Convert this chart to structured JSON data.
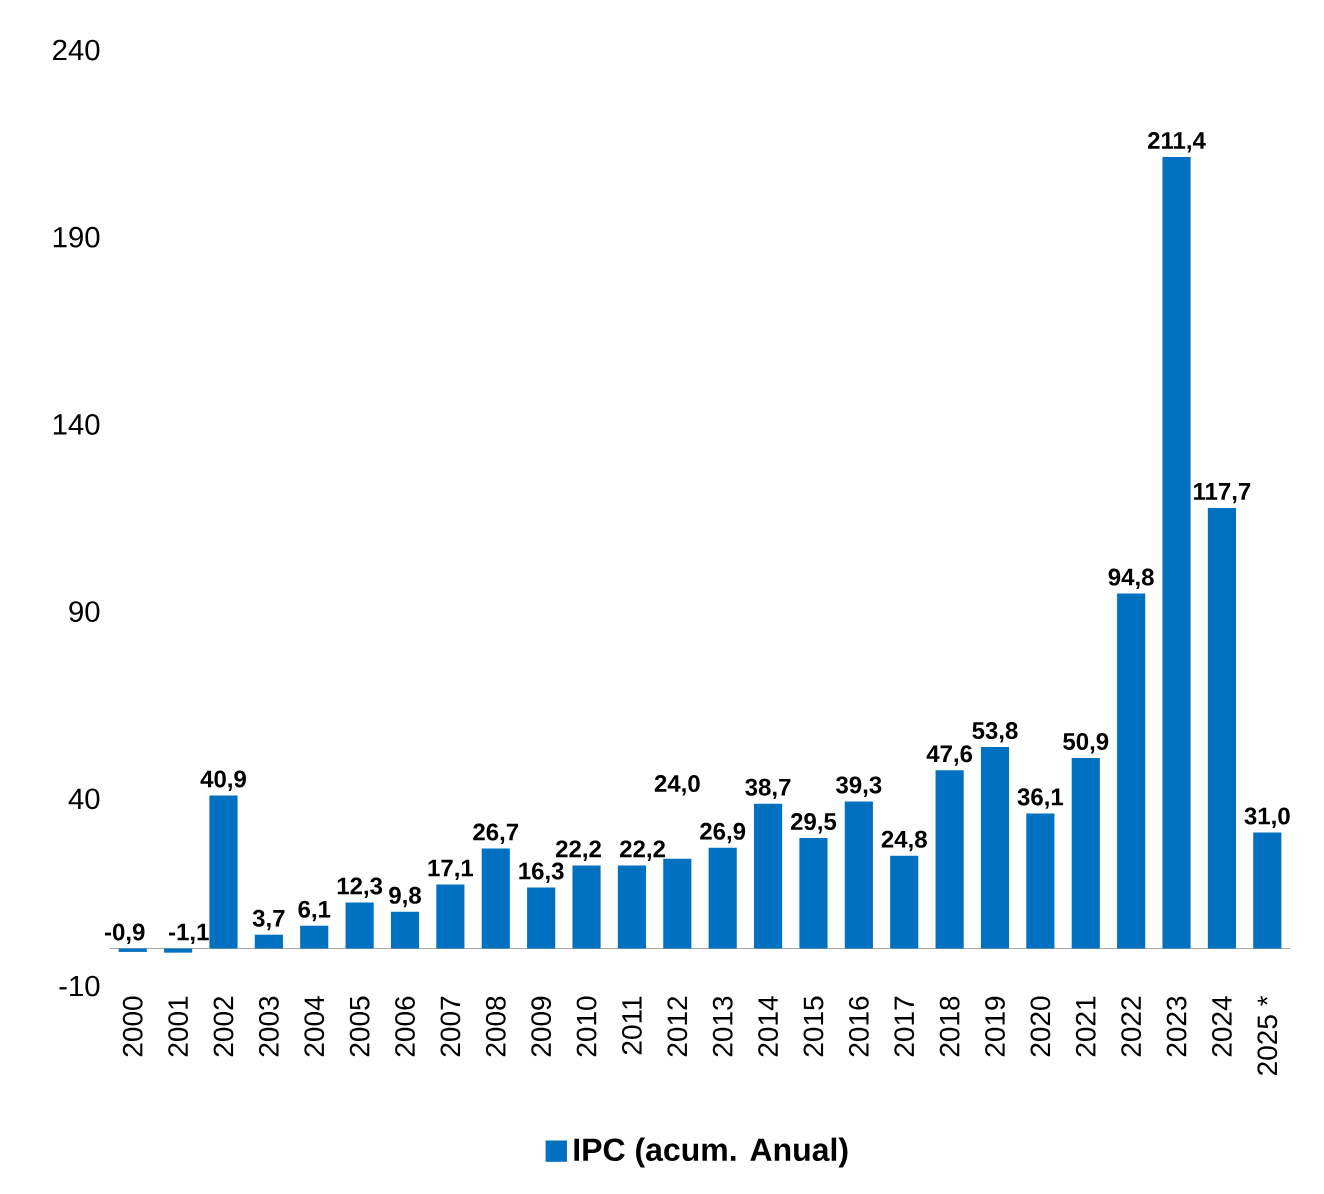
{
  "chart_data": {
    "type": "bar",
    "categories": [
      "2000",
      "2001",
      "2002",
      "2003",
      "2004",
      "2005",
      "2006",
      "2007",
      "2008",
      "2009",
      "2010",
      "2011",
      "2012",
      "2013",
      "2014",
      "2015",
      "2016",
      "2017",
      "2018",
      "2019",
      "2020",
      "2021",
      "2022",
      "2023",
      "2024",
      "2025 *"
    ],
    "series": [
      {
        "name": "IPC (acum. Anual)",
        "color": "#0070c0",
        "values": [
          -0.9,
          -1.1,
          40.9,
          3.7,
          6.1,
          12.3,
          9.8,
          17.1,
          26.7,
          16.3,
          22.2,
          22.2,
          24.0,
          26.9,
          38.7,
          29.5,
          39.3,
          24.8,
          47.6,
          53.8,
          36.1,
          50.9,
          94.8,
          211.4,
          117.7,
          31.0
        ],
        "value_labels": [
          "-0,9",
          "-1,1",
          "40,9",
          "3,7",
          "6,1",
          "12,3",
          "9,8",
          "17,1",
          "26,7",
          "16,3",
          "22,2",
          "22,2",
          "24,0",
          "26,9",
          "38,7",
          "29,5",
          "39,3",
          "24,8",
          "47,6",
          "53,8",
          "36,1",
          "50,9",
          "94,8",
          "211,4",
          "117,7",
          "31,0"
        ]
      }
    ],
    "ylim": [
      -10,
      240
    ],
    "yticks": [
      -10,
      40,
      90,
      140,
      190,
      240
    ],
    "grid": false,
    "legend": "bottom"
  }
}
